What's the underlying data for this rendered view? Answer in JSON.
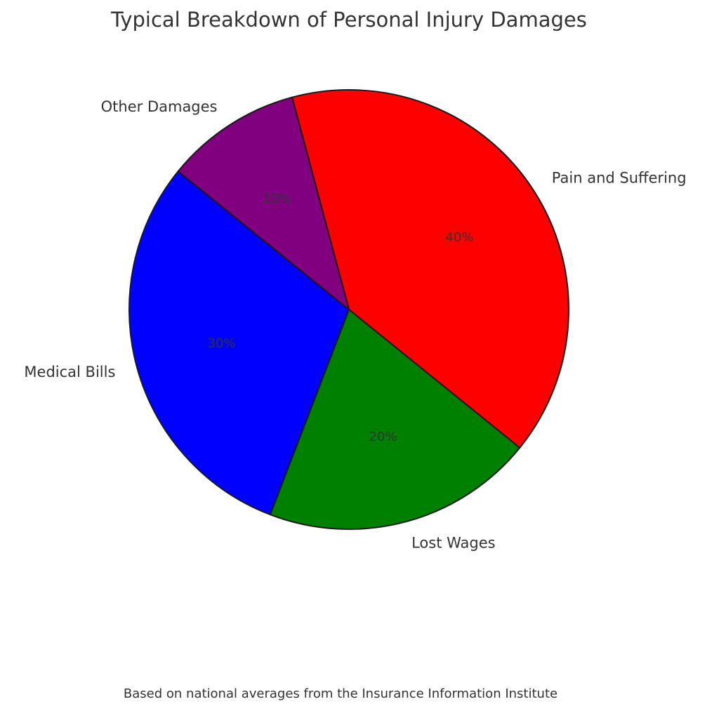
{
  "chart_data": {
    "type": "pie",
    "title": "Typical Breakdown of Personal Injury Damages",
    "caption": "Based on national averages from the Insurance Information Institute",
    "categories": [
      "Pain and Suffering",
      "Lost Wages",
      "Medical Bills",
      "Other Damages"
    ],
    "values": [
      40,
      20,
      30,
      10
    ],
    "value_labels": [
      "40%",
      "20%",
      "30%",
      "10%"
    ],
    "colors": [
      "#ff0000",
      "#008000",
      "#0000ff",
      "#800080"
    ],
    "edge_color": "#1a1a1a",
    "legend": "none",
    "labels_outside": true,
    "start_angle_deg": 105,
    "direction": "clockwise"
  }
}
